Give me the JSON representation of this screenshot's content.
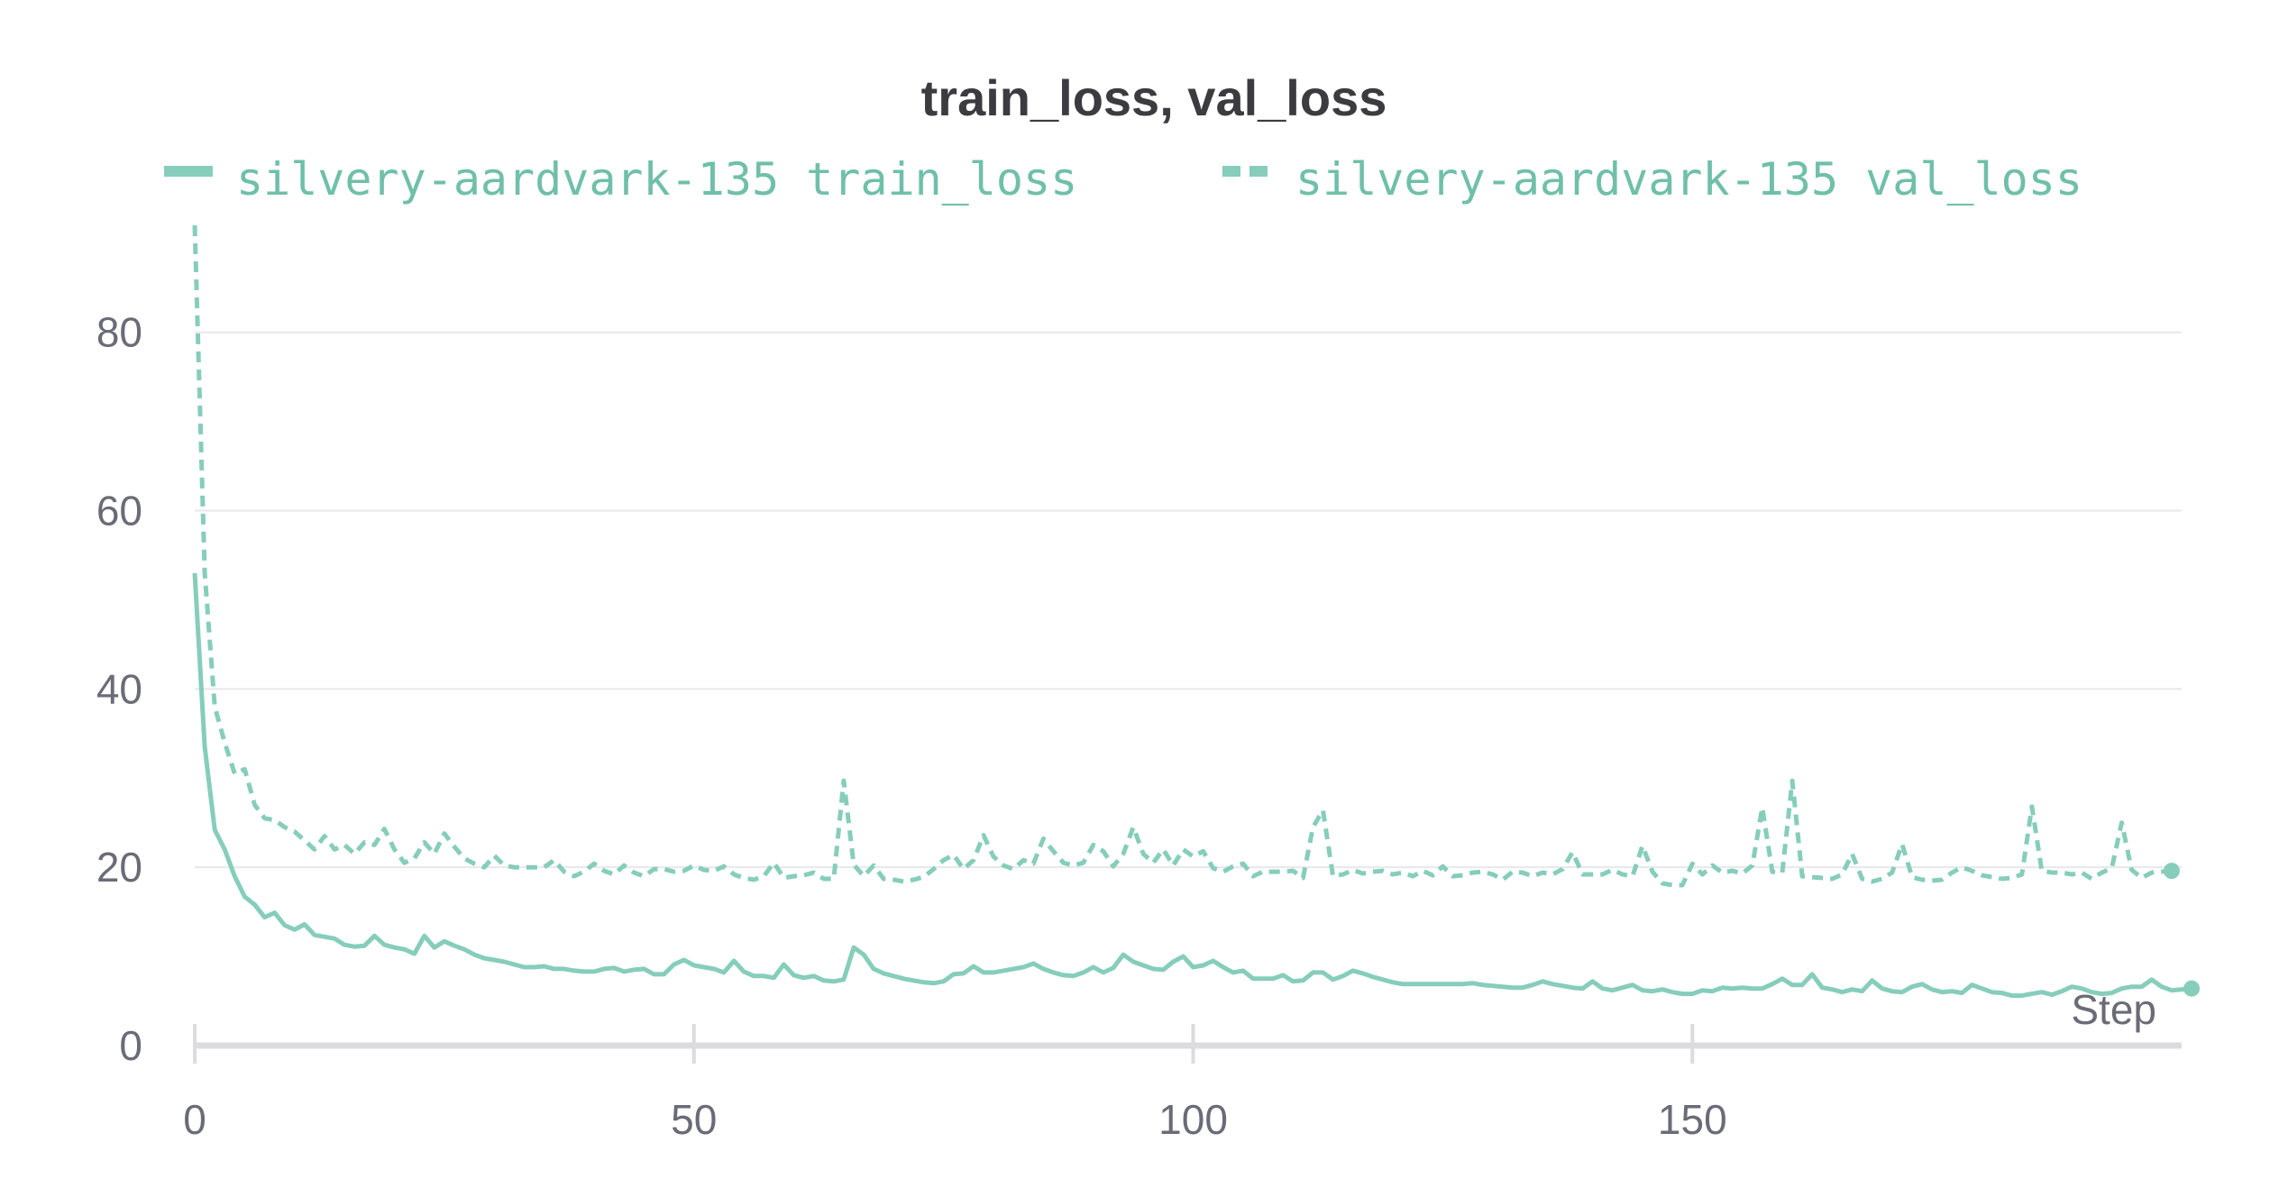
{
  "chart_data": {
    "type": "line",
    "title": "train_loss, val_loss",
    "xlabel": "Step",
    "ylabel": "",
    "xlim": [
      0,
      199
    ],
    "ylim": [
      0,
      92
    ],
    "xticks": [
      0,
      50,
      100,
      150
    ],
    "yticks": [
      0,
      20,
      40,
      60,
      80
    ],
    "grid": "horizontal",
    "legend": "top",
    "series": [
      {
        "name": "silvery-aardvark-135 train_loss",
        "color": "#86cdbb",
        "dash": "solid",
        "values": [
          53,
          33.5,
          24.2,
          22,
          19,
          16.7,
          15.8,
          14.4,
          14.9,
          13.5,
          13,
          13.6,
          12.4,
          12.2,
          12,
          11.3,
          11.1,
          11.2,
          12.3,
          11.3,
          11,
          10.8,
          10.3,
          12.3,
          11,
          11.7,
          11.2,
          10.8,
          10.2,
          9.8,
          9.6,
          9.4,
          9.1,
          8.8,
          8.8,
          8.9,
          8.6,
          8.6,
          8.4,
          8.3,
          8.3,
          8.6,
          8.7,
          8.3,
          8.5,
          8.6,
          8,
          8,
          9.1,
          9.6,
          9,
          8.8,
          8.6,
          8.2,
          9.5,
          8.3,
          7.8,
          7.8,
          7.6,
          9.1,
          7.9,
          7.6,
          7.8,
          7.3,
          7.2,
          7.4,
          11,
          10.2,
          8.6,
          8.1,
          7.8,
          7.5,
          7.3,
          7.1,
          7,
          7.2,
          8,
          8.1,
          8.9,
          8.2,
          8.2,
          8.4,
          8.6,
          8.8,
          9.2,
          8.6,
          8.2,
          7.9,
          7.8,
          8.2,
          8.8,
          8.2,
          8.7,
          10.2,
          9.4,
          9,
          8.6,
          8.5,
          9.4,
          10,
          8.8,
          9,
          9.5,
          8.8,
          8.2,
          8.4,
          7.5,
          7.5,
          7.5,
          7.9,
          7.2,
          7.3,
          8.2,
          8.2,
          7.4,
          7.8,
          8.4,
          8.1,
          7.7,
          7.4,
          7.1,
          6.9,
          6.9,
          6.9,
          6.9,
          6.9,
          6.9,
          6.9,
          7,
          6.8,
          6.7,
          6.6,
          6.5,
          6.5,
          6.8,
          7.2,
          6.9,
          6.7,
          6.5,
          6.4,
          7.2,
          6.4,
          6.2,
          6.5,
          6.8,
          6.2,
          6.1,
          6.3,
          6,
          5.8,
          5.8,
          6.2,
          6.1,
          6.5,
          6.4,
          6.5,
          6.4,
          6.4,
          6.9,
          7.5,
          6.8,
          6.8,
          8,
          6.5,
          6.3,
          6,
          6.3,
          6.1,
          7.3,
          6.4,
          6.1,
          6,
          6.6,
          6.9,
          6.3,
          6,
          6.1,
          5.9,
          6.8,
          6.4,
          6,
          5.9,
          5.6,
          5.6,
          5.8,
          6,
          5.7,
          6.1,
          6.6,
          6.4,
          6,
          5.8,
          5.9,
          6.4,
          6.6,
          6.6,
          7.4,
          6.6,
          6.2,
          6.3,
          6.4
        ]
      },
      {
        "name": "silvery-aardvark-135 val_loss",
        "color": "#86cdbb",
        "dash": "dashed",
        "values": [
          92,
          53,
          38,
          34,
          30.5,
          31,
          27,
          25.5,
          25.3,
          24.5,
          24,
          23,
          22,
          23.5,
          22,
          22.5,
          21.5,
          22.8,
          22.5,
          24.3,
          22,
          20.5,
          21,
          22.8,
          21.5,
          23.8,
          22.3,
          21,
          20.4,
          20,
          21.3,
          20.2,
          20,
          20,
          20,
          20,
          20.8,
          19.5,
          19,
          19.5,
          20.4,
          19.6,
          19.2,
          20.2,
          19.4,
          19,
          19.8,
          19.8,
          19.5,
          19.6,
          20.2,
          19.7,
          19.6,
          20.1,
          19.2,
          18.8,
          18.6,
          19,
          20.5,
          18.8,
          19,
          19.1,
          19.4,
          18.7,
          18.7,
          29.7,
          20.3,
          19,
          20.2,
          18.7,
          18.6,
          18.4,
          18.6,
          18.9,
          19.8,
          20.8,
          21.4,
          19.8,
          20.8,
          23.6,
          21.2,
          20.2,
          19.8,
          20.8,
          20.4,
          23.2,
          21.8,
          20.5,
          20.2,
          20.5,
          22.5,
          21.8,
          20.1,
          21.5,
          24.5,
          21.5,
          20.5,
          22,
          20.2,
          22,
          21.2,
          21.8,
          19.9,
          19.5,
          20.1,
          20.4,
          19,
          19.5,
          19.5,
          19.5,
          19.6,
          18.8,
          24.5,
          26.4,
          19,
          19.2,
          19.7,
          19.3,
          19.5,
          19.6,
          19.2,
          19.4,
          19,
          19.6,
          19.1,
          20.1,
          19,
          19.1,
          19.4,
          19.5,
          19.2,
          18.6,
          19.5,
          19.4,
          19,
          19.4,
          19.2,
          19.8,
          21.7,
          19.2,
          19.2,
          19.2,
          19.7,
          19.2,
          19,
          22.4,
          19.5,
          18.2,
          18,
          18,
          20.4,
          19.2,
          20.2,
          19.4,
          19.6,
          19.3,
          20.2,
          26.7,
          19.5,
          19.4,
          29.7,
          19,
          18.9,
          18.8,
          18.7,
          19.2,
          21.5,
          18.7,
          18.4,
          18.7,
          19.4,
          22.6,
          18.9,
          18.6,
          18.5,
          18.6,
          19.4,
          20,
          19.6,
          19.1,
          18.9,
          18.7,
          18.8,
          19.2,
          26.8,
          19.6,
          19.4,
          19.4,
          19.2,
          19.4,
          18.7,
          19.4,
          19.9,
          25,
          19.7,
          18.8,
          19.4,
          19.5,
          19.6
        ]
      }
    ]
  }
}
